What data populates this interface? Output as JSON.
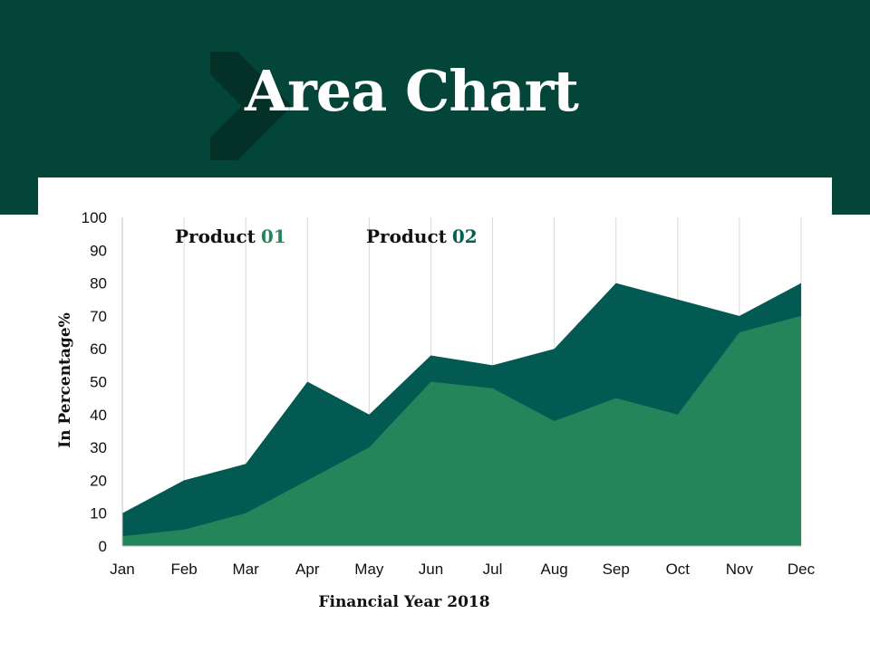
{
  "title": "Area Chart",
  "colors": {
    "header_bg": "#044539",
    "chevron": "#033128",
    "product01": "#24845A",
    "product02": "#035A52",
    "legend_product01_num": "#24845A",
    "legend_product02_num": "#0A5C55",
    "grid": "#D9D9D9"
  },
  "legend": {
    "product01": {
      "label": "Product",
      "number": "01"
    },
    "product02": {
      "label": "Product",
      "number": "02"
    }
  },
  "chart_data": {
    "type": "area",
    "categories": [
      "Jan",
      "Feb",
      "Mar",
      "Apr",
      "May",
      "Jun",
      "Jul",
      "Aug",
      "Sep",
      "Oct",
      "Nov",
      "Dec"
    ],
    "series": [
      {
        "name": "Product 01",
        "values": [
          3,
          5,
          10,
          20,
          30,
          50,
          48,
          38,
          45,
          40,
          65,
          70
        ]
      },
      {
        "name": "Product 02",
        "values": [
          10,
          20,
          25,
          50,
          40,
          58,
          55,
          60,
          80,
          75,
          70,
          80
        ]
      }
    ],
    "xlabel": "Financial Year 2018",
    "ylabel": "In Percentage%",
    "ylim": [
      0,
      100
    ],
    "yticks": [
      0,
      10,
      20,
      30,
      40,
      50,
      60,
      70,
      80,
      90,
      100
    ],
    "grid": "vertical",
    "legend_position": "top-left"
  }
}
